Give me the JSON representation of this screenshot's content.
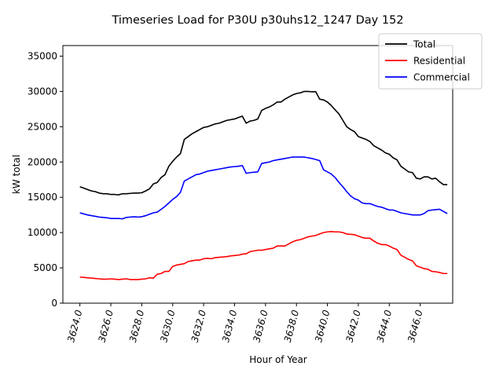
{
  "chart_data": {
    "type": "line",
    "title": "Timeseries Load for P30U p30uhs12_1247  Day 152",
    "xlabel": "Hour of Year",
    "ylabel": "kW total",
    "xlim": [
      3622.9,
      3648.1
    ],
    "ylim": [
      0,
      36500
    ],
    "xticks": [
      3624,
      3626,
      3628,
      3630,
      3632,
      3634,
      3636,
      3638,
      3640,
      3642,
      3644,
      3646
    ],
    "xtick_labels": [
      "3624.0",
      "3626.0",
      "3628.0",
      "3630.0",
      "3632.0",
      "3634.0",
      "3636.0",
      "3638.0",
      "3640.0",
      "3642.0",
      "3644.0",
      "3646.0"
    ],
    "yticks": [
      0,
      5000,
      10000,
      15000,
      20000,
      25000,
      30000,
      35000
    ],
    "ytick_labels": [
      "0",
      "5000",
      "10000",
      "15000",
      "20000",
      "25000",
      "30000",
      "35000"
    ],
    "legend_position": "top-right",
    "x": [
      3624.0,
      3624.25,
      3624.5,
      3624.75,
      3625.0,
      3625.25,
      3625.5,
      3625.75,
      3626.0,
      3626.25,
      3626.5,
      3626.75,
      3627.0,
      3627.25,
      3627.5,
      3627.75,
      3628.0,
      3628.25,
      3628.5,
      3628.75,
      3629.0,
      3629.25,
      3629.5,
      3629.75,
      3630.0,
      3630.25,
      3630.5,
      3630.75,
      3631.0,
      3631.25,
      3631.5,
      3631.75,
      3632.0,
      3632.25,
      3632.5,
      3632.75,
      3633.0,
      3633.25,
      3633.5,
      3633.75,
      3634.0,
      3634.25,
      3634.5,
      3634.75,
      3635.0,
      3635.25,
      3635.5,
      3635.75,
      3636.0,
      3636.25,
      3636.5,
      3636.75,
      3637.0,
      3637.25,
      3637.5,
      3637.75,
      3638.0,
      3638.25,
      3638.5,
      3638.75,
      3639.0,
      3639.25,
      3639.5,
      3639.75,
      3640.0,
      3640.25,
      3640.5,
      3640.75,
      3641.0,
      3641.25,
      3641.5,
      3641.75,
      3642.0,
      3642.25,
      3642.5,
      3642.75,
      3643.0,
      3643.25,
      3643.5,
      3643.75,
      3644.0,
      3644.25,
      3644.5,
      3644.75,
      3645.0,
      3645.25,
      3645.5,
      3645.75,
      3646.0,
      3646.25,
      3646.5,
      3646.75,
      3647.0,
      3647.25,
      3647.5,
      3647.75
    ],
    "series": [
      {
        "name": "Total",
        "color": "#000000",
        "values": [
          16500,
          16300,
          16100,
          15900,
          15800,
          15600,
          15500,
          15500,
          15400,
          15400,
          15350,
          15500,
          15500,
          15550,
          15600,
          15600,
          15650,
          15900,
          16200,
          16900,
          17100,
          17800,
          18200,
          19400,
          20100,
          20700,
          21200,
          23200,
          23600,
          24000,
          24300,
          24600,
          24900,
          25000,
          25200,
          25400,
          25500,
          25700,
          25900,
          26000,
          26100,
          26300,
          26500,
          25500,
          25800,
          25900,
          26100,
          27300,
          27600,
          27800,
          28100,
          28500,
          28500,
          28900,
          29200,
          29500,
          29700,
          29800,
          30000,
          30000,
          29950,
          29950,
          28900,
          28800,
          28500,
          28000,
          27400,
          26800,
          25900,
          25000,
          24600,
          24300,
          23600,
          23400,
          23200,
          22900,
          22300,
          22000,
          21700,
          21300,
          21100,
          20600,
          20300,
          19400,
          19000,
          18600,
          18500,
          17700,
          17600,
          17900,
          17900,
          17600,
          17700,
          17200,
          16800,
          16800
        ]
      },
      {
        "name": "Residential",
        "color": "#ff0000",
        "values": [
          3700,
          3650,
          3600,
          3550,
          3500,
          3450,
          3400,
          3400,
          3450,
          3400,
          3350,
          3400,
          3450,
          3350,
          3350,
          3350,
          3400,
          3450,
          3600,
          3550,
          4100,
          4200,
          4500,
          4500,
          5200,
          5400,
          5500,
          5600,
          5900,
          6000,
          6100,
          6100,
          6300,
          6350,
          6300,
          6450,
          6500,
          6550,
          6600,
          6700,
          6750,
          6800,
          6950,
          7000,
          7300,
          7400,
          7500,
          7500,
          7600,
          7700,
          7800,
          8100,
          8100,
          8100,
          8400,
          8700,
          8900,
          9000,
          9200,
          9400,
          9500,
          9600,
          9800,
          10000,
          10100,
          10150,
          10100,
          10100,
          10000,
          9800,
          9750,
          9700,
          9500,
          9300,
          9200,
          9200,
          8800,
          8500,
          8300,
          8300,
          8100,
          7800,
          7600,
          6800,
          6500,
          6200,
          6000,
          5300,
          5100,
          4900,
          4800,
          4500,
          4450,
          4350,
          4200,
          4200
        ]
      },
      {
        "name": "Commercial",
        "color": "#0000ff",
        "values": [
          12800,
          12650,
          12500,
          12400,
          12300,
          12200,
          12150,
          12100,
          12000,
          12000,
          12000,
          11950,
          12150,
          12200,
          12250,
          12200,
          12250,
          12400,
          12600,
          12800,
          12900,
          13300,
          13700,
          14200,
          14700,
          15100,
          15700,
          17300,
          17600,
          17900,
          18200,
          18300,
          18500,
          18700,
          18800,
          18900,
          19000,
          19100,
          19200,
          19300,
          19350,
          19400,
          19500,
          18400,
          18500,
          18550,
          18600,
          19800,
          19900,
          20000,
          20200,
          20300,
          20400,
          20500,
          20600,
          20700,
          20700,
          20700,
          20700,
          20600,
          20500,
          20350,
          20200,
          18900,
          18600,
          18300,
          17800,
          17100,
          16500,
          15800,
          15200,
          14800,
          14600,
          14200,
          14100,
          14100,
          13900,
          13700,
          13600,
          13400,
          13200,
          13200,
          13000,
          12800,
          12700,
          12600,
          12500,
          12500,
          12500,
          12700,
          13100,
          13200,
          13250,
          13300,
          13000,
          12700
        ]
      }
    ]
  }
}
